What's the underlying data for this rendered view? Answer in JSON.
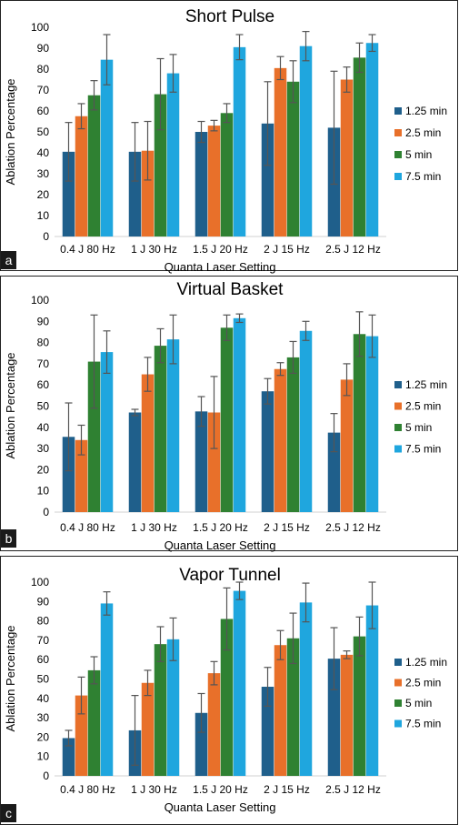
{
  "chart_data": [
    {
      "type": "bar",
      "panel": "a",
      "title": "Short Pulse",
      "xlabel": "Quanta Laser Setting",
      "ylabel": "Ablation Percentage",
      "ylim": [
        0,
        100
      ],
      "yticks": [
        0,
        10,
        20,
        30,
        40,
        50,
        60,
        70,
        80,
        90,
        100
      ],
      "categories": [
        "0.4 J 80 Hz",
        "1 J 30 Hz",
        "1.5 J 20 Hz",
        "2 J 15 Hz",
        "2.5 J 12 Hz"
      ],
      "legend_position": "right",
      "error_bars": true,
      "series": [
        {
          "name": "1.25 min",
          "color": "#1f5f8b",
          "values": [
            40.5,
            40.5,
            50,
            54,
            52
          ],
          "errors": [
            14,
            14,
            5,
            20,
            27
          ]
        },
        {
          "name": "2.5 min",
          "color": "#e8702a",
          "values": [
            57.5,
            41,
            53,
            80.5,
            75
          ],
          "errors": [
            6,
            14,
            2.5,
            5.5,
            6
          ]
        },
        {
          "name": "5 min",
          "color": "#2f8132",
          "values": [
            67.5,
            68,
            59,
            74,
            85.5
          ],
          "errors": [
            7,
            17,
            4.5,
            10,
            7
          ]
        },
        {
          "name": "7.5 min",
          "color": "#1fa6de",
          "values": [
            84.5,
            78,
            90.5,
            91,
            92.5
          ],
          "errors": [
            12,
            9,
            6,
            7,
            4
          ]
        }
      ]
    },
    {
      "type": "bar",
      "panel": "b",
      "title": "Virtual Basket",
      "xlabel": "Quanta Laser Setting",
      "ylabel": "Ablation Percentage",
      "ylim": [
        0,
        100
      ],
      "yticks": [
        0,
        10,
        20,
        30,
        40,
        50,
        60,
        70,
        80,
        90,
        100
      ],
      "categories": [
        "0.4 J 80 Hz",
        "1 J 30 Hz",
        "1.5 J 20 Hz",
        "2 J 15 Hz",
        "2.5 J 12 Hz"
      ],
      "legend_position": "right",
      "error_bars": true,
      "series": [
        {
          "name": "1.25 min",
          "color": "#1f5f8b",
          "values": [
            35.5,
            47,
            47.5,
            57,
            37.5
          ],
          "errors": [
            16,
            1.5,
            7,
            6,
            9
          ]
        },
        {
          "name": "2.5 min",
          "color": "#e8702a",
          "values": [
            34,
            65,
            47,
            67.5,
            62.5
          ],
          "errors": [
            7,
            8,
            17,
            3,
            7.5
          ]
        },
        {
          "name": "5 min",
          "color": "#2f8132",
          "values": [
            71,
            78.5,
            87,
            73,
            84
          ],
          "errors": [
            22,
            8,
            6,
            7.5,
            10.5
          ]
        },
        {
          "name": "7.5 min",
          "color": "#1fa6de",
          "values": [
            75.5,
            81.5,
            91.5,
            85.5,
            83
          ],
          "errors": [
            10,
            11.5,
            2,
            4.5,
            10
          ]
        }
      ]
    },
    {
      "type": "bar",
      "panel": "c",
      "title": "Vapor  Tunnel",
      "xlabel": "Quanta Laser Setting",
      "ylabel": "Ablation Percentage",
      "ylim": [
        0,
        100
      ],
      "yticks": [
        0,
        10,
        20,
        30,
        40,
        50,
        60,
        70,
        80,
        90,
        100
      ],
      "categories": [
        "0.4 J 80 Hz",
        "1 J 30 Hz",
        "1.5 J 20 Hz",
        "2 J 15 Hz",
        "2.5 J 12 Hz"
      ],
      "legend_position": "right",
      "error_bars": true,
      "series": [
        {
          "name": "1.25 min",
          "color": "#1f5f8b",
          "values": [
            19.5,
            23.5,
            32.5,
            46,
            60.5
          ],
          "errors": [
            4,
            18,
            10,
            10,
            16
          ]
        },
        {
          "name": "2.5 min",
          "color": "#e8702a",
          "values": [
            41.5,
            48,
            53,
            67.5,
            62.5
          ],
          "errors": [
            9.5,
            6.5,
            6,
            7.5,
            2
          ]
        },
        {
          "name": "5 min",
          "color": "#2f8132",
          "values": [
            54.5,
            68,
            81,
            71,
            72
          ],
          "errors": [
            7,
            9,
            16,
            13,
            10
          ]
        },
        {
          "name": "7.5 min",
          "color": "#1fa6de",
          "values": [
            89,
            70.5,
            95.5,
            89.5,
            88
          ],
          "errors": [
            6,
            11,
            4.5,
            10,
            12
          ]
        }
      ]
    }
  ]
}
